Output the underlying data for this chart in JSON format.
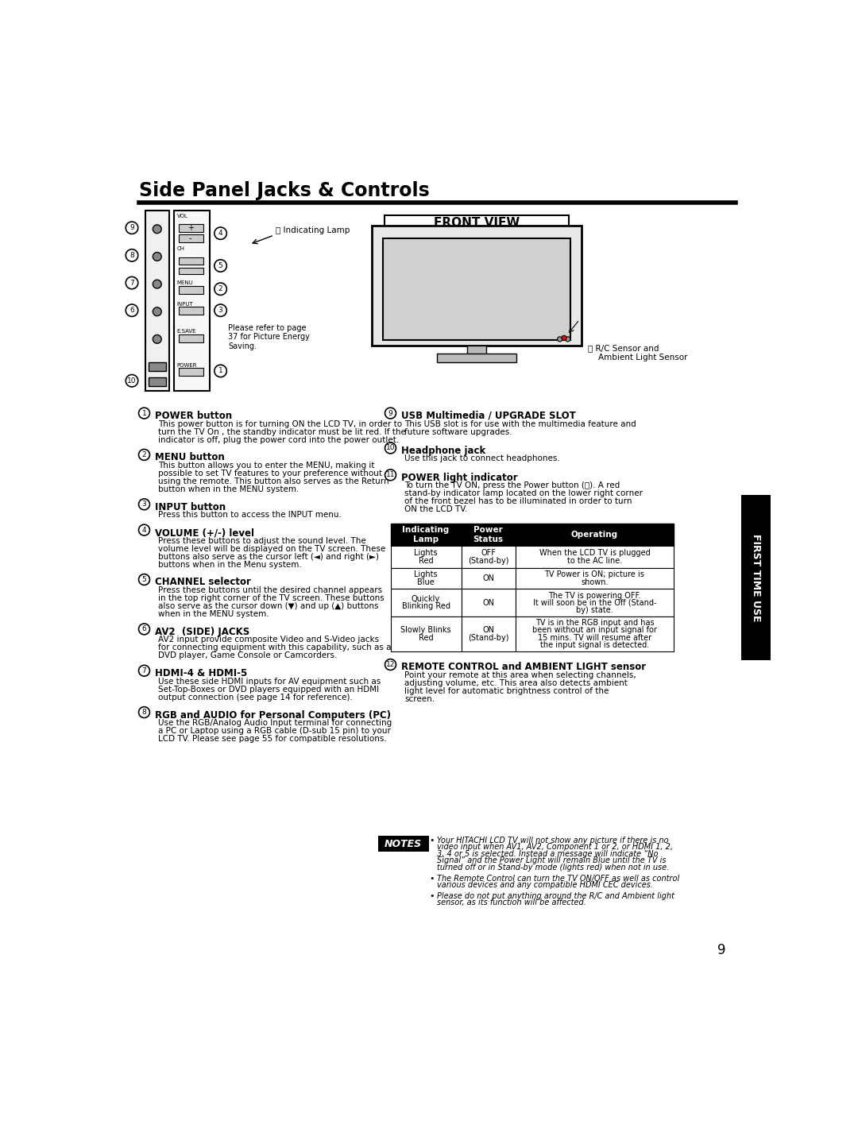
{
  "title": "Side Panel Jacks & Controls",
  "bg_color": "#ffffff",
  "tab_color": "#000000",
  "tab_text": "FIRST TIME USE",
  "page_num": "9",
  "front_view_label": "FRONT VIEW",
  "sections_left": [
    {
      "num": "1",
      "heading": "POWER button",
      "body": "This power button is for turning ON the LCD TV, in order to\nturn the TV On , the standby indicator must be lit red. If the\nindicator is off, plug the power cord into the power outlet."
    },
    {
      "num": "2",
      "heading": "MENU button",
      "body": "This button allows you to enter the MENU, making it\npossible to set TV features to your preference without\nusing the remote. This button also serves as the Return\nbutton when in the MENU system."
    },
    {
      "num": "3",
      "heading": "INPUT button",
      "body": "Press this button to access the INPUT menu."
    },
    {
      "num": "4",
      "heading": "VOLUME (+/-) level",
      "body": "Press these buttons to adjust the sound level. The\nvolume level will be displayed on the TV screen. These\nbuttons also serve as the cursor left (◄) and right (►)\nbuttons when in the Menu system."
    },
    {
      "num": "5",
      "heading": "CHANNEL selector",
      "body": "Press these buttons until the desired channel appears\nin the top right corner of the TV screen. These buttons\nalso serve as the cursor down (▼) and up (▲) buttons\nwhen in the MENU system."
    },
    {
      "num": "6",
      "heading": "AV2  (SIDE) JACKS",
      "body": "AV2 input provide composite Video and S-Video jacks\nfor connecting equipment with this capability, such as a\nDVD player, Game Console or Camcorders."
    },
    {
      "num": "7",
      "heading": "HDMI-4 & HDMI-5",
      "body": "Use these side HDMI inputs for AV equipment such as\nSet-Top-Boxes or DVD players equipped with an HDMI\noutput connection (see page 14 for reference)."
    },
    {
      "num": "8",
      "heading": "RGB and AUDIO for Personal Computers (PC)",
      "body": "Use the RGB/Analog Audio Input terminal for connecting\na PC or Laptop using a RGB cable (D-sub 15 pin) to your\nLCD TV. Please see page 55 for compatible resolutions."
    }
  ],
  "sections_right": [
    {
      "num": "9",
      "heading": "USB Multimedia / UPGRADE SLOT",
      "body": "This USB slot is for use with the multimedia feature and\nfuture software upgrades."
    },
    {
      "num": "10",
      "heading": "Headphone jack",
      "body": "Use this jack to connect headphones."
    },
    {
      "num": "11",
      "heading": "POWER light indicator",
      "body": "To turn the TV ON, press the Power button (Ⓢ). A red\nstand-by indicator lamp located on the lower right corner\nof the front bezel has to be illuminated in order to turn\nON the LCD TV."
    },
    {
      "num": "12",
      "heading": "REMOTE CONTROL and AMBIENT LIGHT sensor",
      "body": "Point your remote at this area when selecting channels,\nadjusting volume, etc. This area also detects ambient\nlight level for automatic brightness control of the\nscreen."
    }
  ],
  "table_headers": [
    "Indicating\nLamp",
    "Power\nStatus",
    "Operating"
  ],
  "table_rows": [
    [
      "Lights\nRed",
      "OFF\n(Stand-by)",
      "When the LCD TV is plugged\nto the AC line."
    ],
    [
      "Lights\nBlue",
      "ON",
      "TV Power is ON; picture is\nshown."
    ],
    [
      "Quickly\nBlinking Red",
      "ON",
      "The TV is powering OFF.\nIt will soon be in the Off (Stand-\nby) state."
    ],
    [
      "Slowly Blinks\nRed",
      "ON\n(Stand-by)",
      "TV is in the RGB input and has\nbeen without an input signal for\n15 mins. TV will resume after\nthe input signal is detected."
    ]
  ],
  "notes_label": "NOTES",
  "notes_items": [
    "Your HITACHI LCD TV will not show any picture if there is no video input when AV1, AV2, Component 1 or 2, or HDMI 1, 2, 3, 4 or 5 is selected. Instead a message will indicate “No Signal” and the Power Light will remain Blue until the TV is turned off or in Stand-by mode (lights red) when not in use.",
    "The Remote Control can turn the TV ON/OFF as well as control various devices and any compatible HDMI CEC devices.",
    "Please do not put anything around the R/C and Ambient light sensor, as its function will be affected."
  ]
}
